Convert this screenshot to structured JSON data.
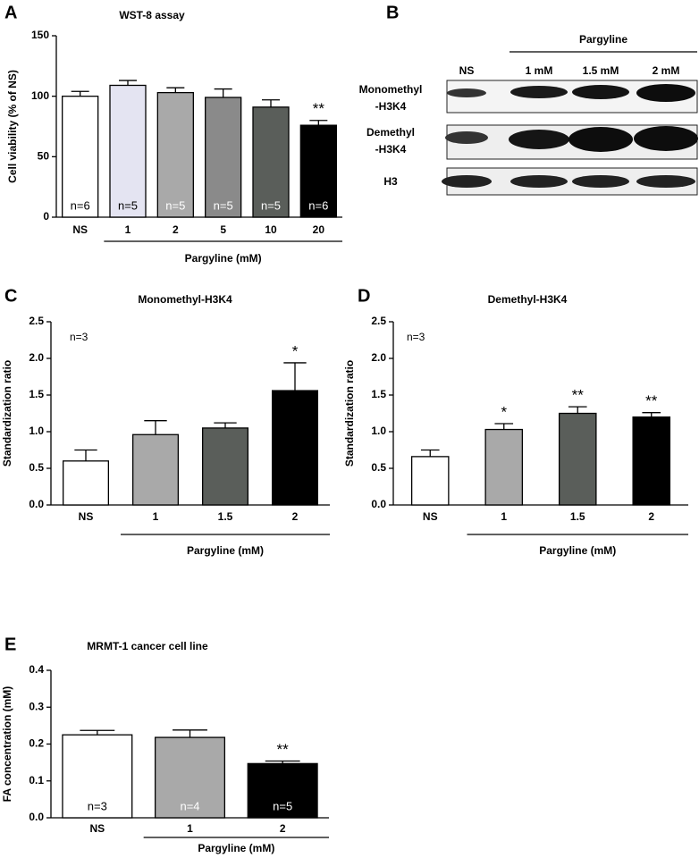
{
  "chart_data": [
    {
      "type": "bar",
      "panel": "A",
      "title": "WST-8 assay",
      "y_label": "Cell viability (% of NS)",
      "group_label": "Pargyline (mM)",
      "categories": [
        "NS",
        "1",
        "2",
        "5",
        "10",
        "20"
      ],
      "values": [
        100,
        109,
        103,
        99,
        91,
        76
      ],
      "errors": [
        4,
        4,
        4,
        7,
        6,
        4
      ],
      "colors": [
        "#ffffff",
        "#e4e4f2",
        "#a9a9a9",
        "#8a8a8a",
        "#5a5e5a",
        "#000000"
      ],
      "n_labels": [
        "n=6",
        "n=5",
        "n=5",
        "n=5",
        "n=5",
        "n=6"
      ],
      "significance": [
        null,
        null,
        null,
        null,
        null,
        "**"
      ],
      "ylim": [
        0,
        150
      ],
      "yticks": [
        0,
        50,
        100,
        150
      ]
    },
    {
      "type": "bar",
      "panel": "C",
      "title": "Monomethyl-H3K4",
      "y_label": "Standardization ratio",
      "group_label": "Pargyline (mM)",
      "annotation": "n=3",
      "categories": [
        "NS",
        "1",
        "1.5",
        "2"
      ],
      "values": [
        0.6,
        0.96,
        1.05,
        1.56
      ],
      "errors": [
        0.15,
        0.19,
        0.07,
        0.38
      ],
      "colors": [
        "#ffffff",
        "#a9a9a9",
        "#5a5e5a",
        "#000000"
      ],
      "significance": [
        null,
        null,
        null,
        "*"
      ],
      "ylim": [
        0,
        2.5
      ],
      "yticks": [
        {
          "value": 0,
          "label": "0.0"
        },
        0.5,
        {
          "value": 1,
          "label": "1.0"
        },
        1.5,
        {
          "value": 2,
          "label": "2.0"
        },
        2.5
      ]
    },
    {
      "type": "bar",
      "panel": "D",
      "title": "Demethyl-H3K4",
      "y_label": "Standardization ratio",
      "group_label": "Pargyline (mM)",
      "annotation": "n=3",
      "categories": [
        "NS",
        "1",
        "1.5",
        "2"
      ],
      "values": [
        0.66,
        1.03,
        1.25,
        1.2
      ],
      "errors": [
        0.09,
        0.08,
        0.09,
        0.06
      ],
      "colors": [
        "#ffffff",
        "#a9a9a9",
        "#5a5e5a",
        "#000000"
      ],
      "significance": [
        null,
        "*",
        "**",
        "**"
      ],
      "ylim": [
        0,
        2.5
      ],
      "yticks": [
        {
          "value": 0,
          "label": "0.0"
        },
        0.5,
        {
          "value": 1,
          "label": "1.0"
        },
        1.5,
        {
          "value": 2,
          "label": "2.0"
        },
        2.5
      ]
    },
    {
      "type": "bar",
      "panel": "E",
      "title": "MRMT-1 cancer cell line",
      "y_label": "FA concentration (mM)",
      "group_label": "Pargyline (mM)",
      "categories": [
        "NS",
        "1",
        "2"
      ],
      "values": [
        0.225,
        0.218,
        0.147
      ],
      "errors": [
        0.012,
        0.02,
        0.007
      ],
      "colors": [
        "#ffffff",
        "#a9a9a9",
        "#000000"
      ],
      "n_labels": [
        "n=3",
        "n=4",
        "n=5"
      ],
      "significance": [
        null,
        null,
        "**"
      ],
      "ylim": [
        0,
        0.4
      ],
      "yticks": [
        {
          "value": 0,
          "label": "0.0"
        },
        0.1,
        0.2,
        0.3,
        0.4
      ]
    }
  ],
  "blot": {
    "panel": "B",
    "group_label": "Pargyline",
    "lanes": [
      "NS",
      "1 mM",
      "1.5 mM",
      "2 mM"
    ],
    "rows": [
      {
        "lines": [
          "Monomethyl",
          "-H3K4"
        ]
      },
      {
        "lines": [
          "Demethyl",
          "-H3K4"
        ]
      },
      {
        "lines": [
          "H3"
        ]
      }
    ]
  }
}
